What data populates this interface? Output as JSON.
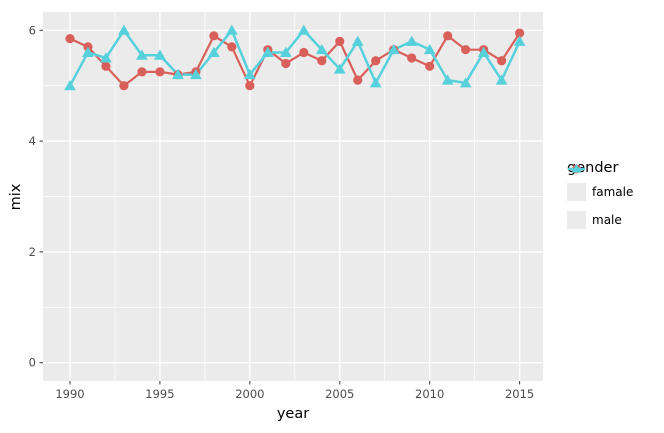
{
  "figure": {
    "background": "#ffffff",
    "panel_background": "#ebebeb",
    "grid_color": "#ffffff",
    "tick_color": "#333333",
    "tick_label_color": "#4d4d4d",
    "axis_title_color": "#000000"
  },
  "chart_data": {
    "type": "line",
    "title": "",
    "xlabel": "year",
    "ylabel": "mix",
    "legend_title": "gender",
    "legend_position": "right",
    "grid": true,
    "xlim": [
      1988.5,
      2016.3
    ],
    "ylim": [
      -0.33,
      6.33
    ],
    "x_ticks": [
      1990,
      1995,
      2000,
      2005,
      2010,
      2015
    ],
    "x_minor_ticks": [
      1992.5,
      1997.5,
      2002.5,
      2007.5,
      2012.5
    ],
    "y_ticks": [
      0,
      2,
      4,
      6
    ],
    "y_minor_ticks": [
      1,
      3,
      5
    ],
    "x": [
      1990,
      1991,
      1992,
      1993,
      1994,
      1995,
      1996,
      1997,
      1998,
      1999,
      2000,
      2001,
      2002,
      2003,
      2004,
      2005,
      2006,
      2007,
      2008,
      2009,
      2010,
      2011,
      2012,
      2013,
      2014,
      2015
    ],
    "series": [
      {
        "name": "famale",
        "color": "#d95f5b",
        "marker": "circle",
        "values": [
          5.85,
          5.7,
          5.35,
          5.0,
          5.25,
          5.25,
          5.2,
          5.25,
          5.9,
          5.7,
          5.0,
          5.65,
          5.4,
          5.6,
          5.45,
          5.8,
          5.1,
          5.45,
          5.65,
          5.5,
          5.35,
          5.9,
          5.65,
          5.65,
          5.45,
          5.95
        ]
      },
      {
        "name": "male",
        "color": "#56d1dc",
        "marker": "triangle",
        "values": [
          5.0,
          5.6,
          5.5,
          6.0,
          5.55,
          5.55,
          5.2,
          5.2,
          5.6,
          6.0,
          5.2,
          5.6,
          5.6,
          6.0,
          5.65,
          5.3,
          5.8,
          5.05,
          5.65,
          5.8,
          5.65,
          5.1,
          5.05,
          5.6,
          5.1,
          5.8
        ]
      }
    ]
  }
}
